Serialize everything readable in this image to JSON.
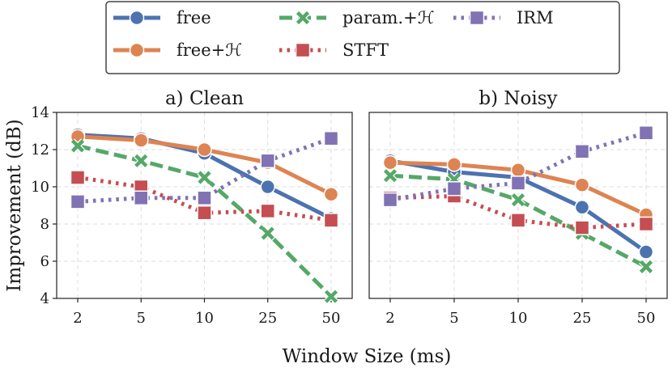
{
  "chart_data": {
    "type": "line",
    "xlabel": "Window Size (ms)",
    "ylabel": "Improvement (dB)",
    "categories": [
      "2",
      "5",
      "10",
      "25",
      "50"
    ],
    "ylim": [
      4,
      14
    ],
    "yticks": [
      4,
      6,
      8,
      10,
      12,
      14
    ],
    "grid": true,
    "legend_position": "top-center",
    "legend": [
      {
        "name": "free",
        "color": "#4c72b0",
        "marker": "circle",
        "dash": "solid"
      },
      {
        "name": "free+ℋ",
        "color": "#dd8452",
        "marker": "circle",
        "dash": "solid"
      },
      {
        "name": "param.+ℋ",
        "color": "#55a868",
        "marker": "x",
        "dash": "dashed"
      },
      {
        "name": "STFT",
        "color": "#c44e52",
        "marker": "square",
        "dash": "dotted"
      },
      {
        "name": "IRM",
        "color": "#8172b3",
        "marker": "square",
        "dash": "dotted"
      }
    ],
    "panels": [
      {
        "title": "a) Clean",
        "series": [
          {
            "name": "free",
            "values": [
              12.8,
              12.6,
              11.8,
              10.0,
              8.3
            ]
          },
          {
            "name": "free+ℋ",
            "values": [
              12.7,
              12.5,
              12.0,
              11.3,
              9.6
            ]
          },
          {
            "name": "param.+ℋ",
            "values": [
              12.2,
              11.4,
              10.5,
              7.5,
              4.1
            ]
          },
          {
            "name": "STFT",
            "values": [
              10.5,
              10.0,
              8.6,
              8.7,
              8.2
            ]
          },
          {
            "name": "IRM",
            "values": [
              9.2,
              9.4,
              9.4,
              11.4,
              12.6
            ]
          }
        ]
      },
      {
        "title": "b) Noisy",
        "series": [
          {
            "name": "free",
            "values": [
              11.4,
              10.8,
              10.5,
              8.9,
              6.5
            ]
          },
          {
            "name": "free+ℋ",
            "values": [
              11.3,
              11.2,
              10.9,
              10.1,
              8.5
            ]
          },
          {
            "name": "param.+ℋ",
            "values": [
              10.6,
              10.4,
              9.3,
              7.5,
              5.7
            ]
          },
          {
            "name": "STFT",
            "values": [
              9.4,
              9.5,
              8.2,
              7.8,
              8.0
            ]
          },
          {
            "name": "IRM",
            "values": [
              9.3,
              9.9,
              10.2,
              11.9,
              12.9
            ]
          }
        ]
      }
    ]
  }
}
